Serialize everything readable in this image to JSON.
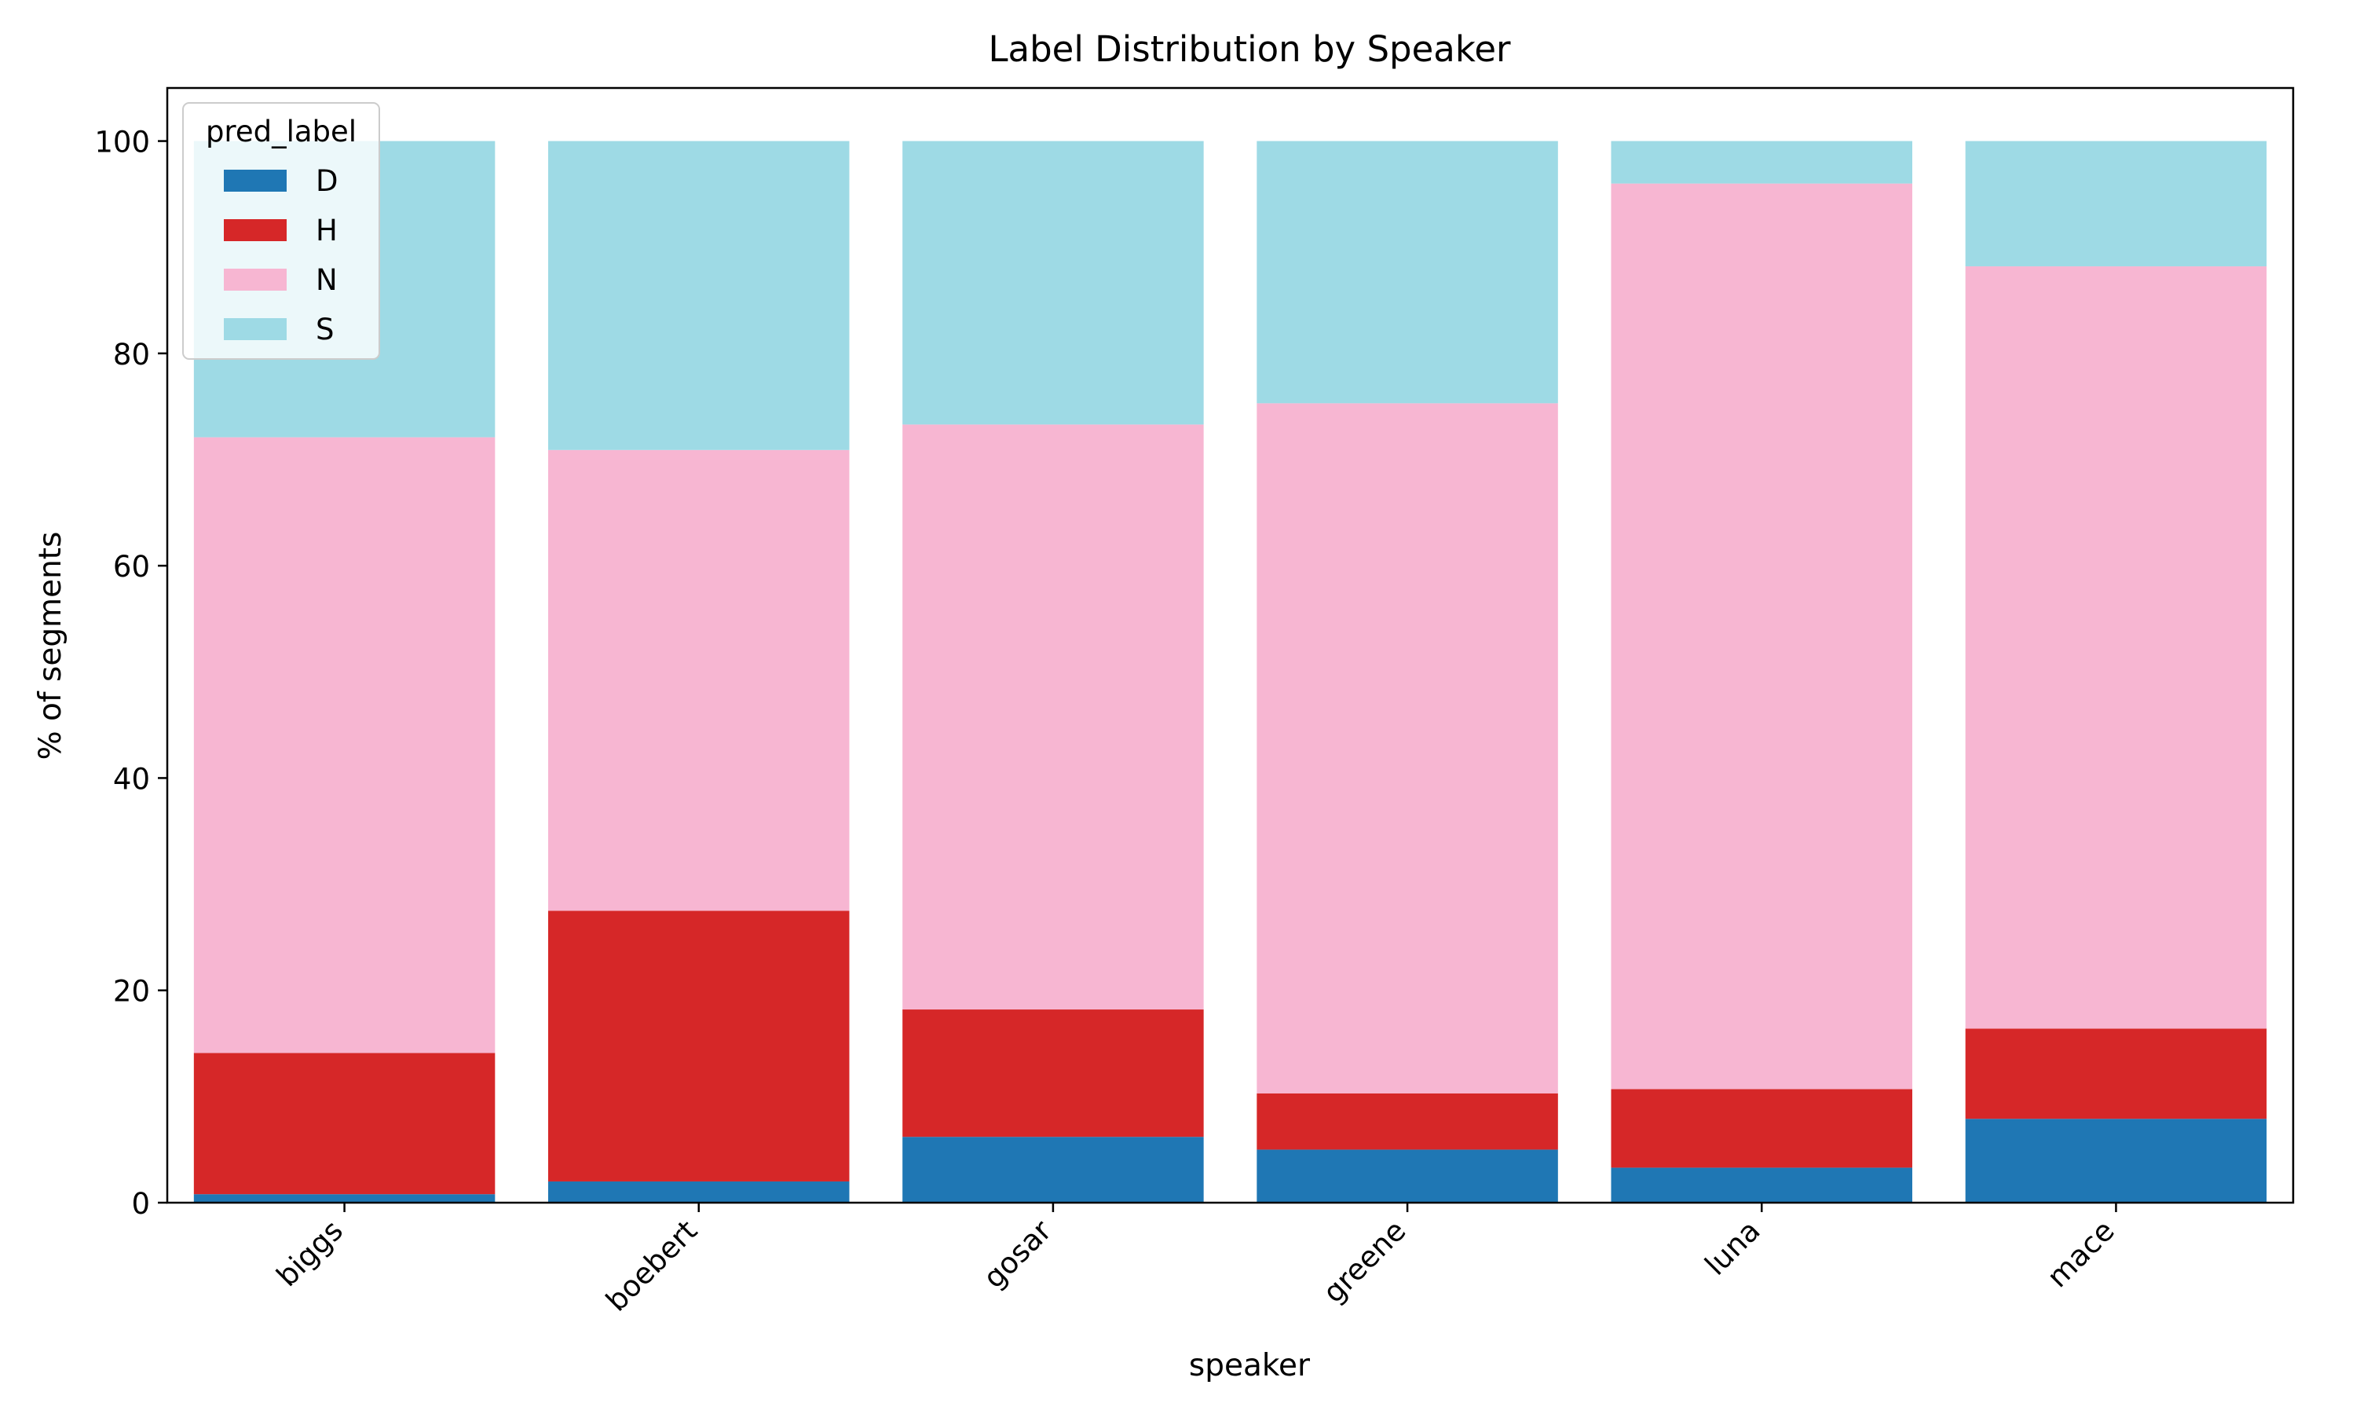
{
  "chart_data": {
    "type": "bar",
    "stacked": true,
    "title": "Label Distribution by Speaker",
    "xlabel": "speaker",
    "ylabel": "% of segments",
    "categories": [
      "biggs",
      "boebert",
      "gosar",
      "greene",
      "luna",
      "mace"
    ],
    "ylim": [
      0,
      105
    ],
    "yticks": [
      "0",
      "20",
      "40",
      "60",
      "80",
      "100"
    ],
    "grid": false,
    "legend": {
      "title": "pred_label",
      "placement": "top-left"
    },
    "series": [
      {
        "name": "D",
        "color": "#1f77b4",
        "values": [
          0.8,
          2.0,
          6.2,
          5.0,
          3.3,
          7.9
        ]
      },
      {
        "name": "H",
        "color": "#d62728",
        "values": [
          13.3,
          25.5,
          12.0,
          5.3,
          7.4,
          8.5
        ]
      },
      {
        "name": "N",
        "color": "#f7b6d2",
        "values": [
          58.0,
          43.4,
          55.1,
          65.0,
          85.3,
          71.8
        ]
      },
      {
        "name": "S",
        "color": "#9edae5",
        "values": [
          27.9,
          29.1,
          26.7,
          24.7,
          4.0,
          11.8
        ]
      }
    ]
  }
}
